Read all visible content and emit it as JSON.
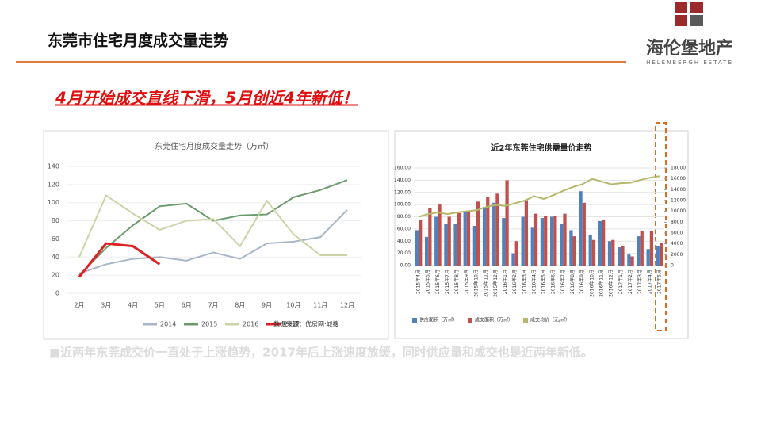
{
  "header": {
    "title": "东莞市住宅月度成交量走势",
    "logo_text": "海伦堡地产",
    "logo_sub": "HELENBERGH ESTATE"
  },
  "headline": "4月开始成交直线下滑，5月创近4年新低！",
  "chart_data": [
    {
      "type": "line",
      "title": "东莞住宅月度成交量走势（万㎡）",
      "categories": [
        "2月",
        "3月",
        "4月",
        "5月",
        "6月",
        "7月",
        "8月",
        "9月",
        "10月",
        "11月",
        "12月"
      ],
      "series": [
        {
          "name": "2014",
          "color": "#a9b6c9",
          "values": [
            22,
            32,
            38,
            40,
            36,
            45,
            38,
            55,
            57,
            62,
            92
          ]
        },
        {
          "name": "2015",
          "color": "#6b9a6b",
          "values": [
            20,
            50,
            75,
            96,
            99,
            80,
            86,
            87,
            106,
            114,
            125
          ]
        },
        {
          "name": "2016",
          "color": "#ccd3a6",
          "values": [
            40,
            108,
            88,
            70,
            80,
            82,
            52,
            102,
            65,
            42,
            42
          ]
        },
        {
          "name": "2017",
          "color": "#e02020",
          "values": [
            18,
            55,
            52,
            32,
            null,
            null,
            null,
            null,
            null,
            null,
            null
          ]
        }
      ],
      "ylim": [
        0,
        140
      ],
      "yticks": [
        0,
        20,
        40,
        60,
        80,
        100,
        120,
        140
      ],
      "annotation": "数据来源：优房网·城搜"
    },
    {
      "type": "bar",
      "title": "近2年东莞住宅供需量价走势",
      "categories": [
        "2015年4月",
        "2015年5月",
        "2015年6月",
        "2015年7月",
        "2015年8月",
        "2015年9月",
        "2015年10月",
        "2015年11月",
        "2015年12月",
        "2016年1月",
        "2016年2月",
        "2016年3月",
        "2016年4月",
        "2016年5月",
        "2016年6月",
        "2016年7月",
        "2016年8月",
        "2016年9月",
        "2016年10月",
        "2016年11月",
        "2016年12月",
        "2017年1月",
        "2017年2月",
        "2017年3月",
        "2017年4月",
        "2017年5月"
      ],
      "series": [
        {
          "name": "供应面积（万㎡）",
          "color": "#4f81bd",
          "values": [
            58,
            47,
            80,
            68,
            68,
            88,
            65,
            96,
            103,
            78,
            20,
            80,
            62,
            78,
            80,
            68,
            58,
            122,
            50,
            73,
            40,
            30,
            18,
            48,
            27,
            32
          ]
        },
        {
          "name": "成交面积（万㎡）",
          "color": "#c0504d",
          "values": [
            75,
            95,
            100,
            80,
            86,
            88,
            105,
            113,
            118,
            140,
            40,
            107,
            85,
            82,
            82,
            85,
            48,
            103,
            42,
            75,
            42,
            32,
            15,
            56,
            57,
            37
          ]
        },
        {
          "name": "成交均价（元/㎡）",
          "color": "#b5b86a",
          "axis": "y2",
          "values": [
            9000,
            9500,
            9800,
            9500,
            9800,
            10000,
            10200,
            10800,
            11200,
            11000,
            11500,
            12000,
            12800,
            12300,
            13000,
            13800,
            14500,
            15000,
            16000,
            15500,
            15000,
            15200,
            15300,
            15800,
            16200,
            16500
          ]
        }
      ],
      "ylim": [
        0,
        160
      ],
      "yticks": [
        {
          "value": 0,
          "label": "0.00"
        },
        {
          "value": 20,
          "label": "20.00"
        },
        {
          "value": 40,
          "label": "40.00"
        },
        {
          "value": 60,
          "label": "60.00"
        },
        {
          "value": 80,
          "label": "80.00"
        },
        {
          "value": 100,
          "label": "100.00"
        },
        {
          "value": 120,
          "label": "120.00"
        },
        {
          "value": 140,
          "label": "140.00"
        },
        {
          "value": 160,
          "label": "160.00"
        }
      ],
      "y2lim": [
        0,
        18000
      ],
      "y2ticks": [
        0,
        2000,
        4000,
        6000,
        8000,
        10000,
        12000,
        14000,
        16000,
        18000
      ]
    }
  ],
  "note": "■近两年东莞成交价一直处于上涨趋势，2017年后上涨速度放缓，同时供应量和成交也是近两年新低。"
}
